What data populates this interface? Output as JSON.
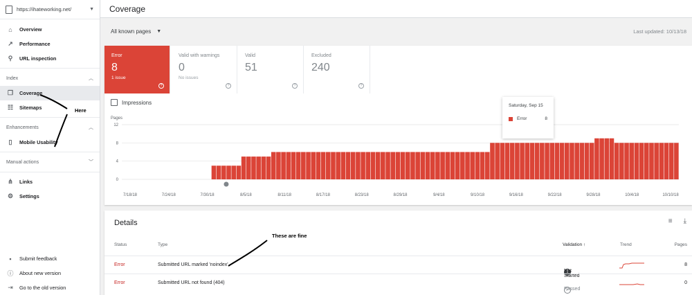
{
  "sidebar": {
    "property_url": "https://ihateworking.net/",
    "top_items": [
      {
        "label": "Overview",
        "icon": "home-icon"
      },
      {
        "label": "Performance",
        "icon": "trending-up-icon"
      },
      {
        "label": "URL inspection",
        "icon": "search-icon"
      }
    ],
    "index_section": "Index",
    "index_items": [
      {
        "label": "Coverage",
        "icon": "copy-icon"
      },
      {
        "label": "Sitemaps",
        "icon": "sitemap-icon"
      }
    ],
    "enhancements_section": "Enhancements",
    "enhancement_items": [
      {
        "label": "Mobile Usability",
        "icon": "phone-icon"
      }
    ],
    "manual_section": "Manual actions",
    "bottom_items": [
      {
        "label": "Links",
        "icon": "links-icon"
      },
      {
        "label": "Settings",
        "icon": "gear-icon"
      }
    ],
    "footer_items": [
      {
        "label": "Submit feedback",
        "icon": "feedback-icon"
      },
      {
        "label": "About new version",
        "icon": "info-icon"
      },
      {
        "label": "Go to the old version",
        "icon": "exit-icon"
      }
    ]
  },
  "header": {
    "title": "Coverage"
  },
  "filter": {
    "selected": "All known pages",
    "last_updated": "Last updated: 10/13/18"
  },
  "tiles": [
    {
      "label": "Error",
      "value": "8",
      "sub": "1 issue"
    },
    {
      "label": "Valid with warnings",
      "value": "0",
      "sub": "No issues"
    },
    {
      "label": "Valid",
      "value": "51",
      "sub": ""
    },
    {
      "label": "Excluded",
      "value": "240",
      "sub": ""
    }
  ],
  "impressions_label": "Impressions",
  "tooltip": {
    "date": "Saturday, Sep 15",
    "series": "Error",
    "value": "8"
  },
  "colors": {
    "error": "#db4437",
    "accent": "#c5221f"
  },
  "chart_data": {
    "type": "bar",
    "ylabel": "Pages",
    "yticks": [
      0,
      4,
      8,
      12
    ],
    "ylim": [
      0,
      12
    ],
    "xtick_labels": [
      "7/18/18",
      "7/24/18",
      "7/30/18",
      "8/5/18",
      "8/11/18",
      "8/17/18",
      "8/23/18",
      "8/29/18",
      "9/4/18",
      "9/10/18",
      "9/16/18",
      "9/22/18",
      "9/28/18",
      "10/4/18",
      "10/10/18"
    ],
    "series": [
      {
        "name": "Error",
        "values": [
          0,
          0,
          0,
          0,
          0,
          0,
          0,
          0,
          0,
          0,
          0,
          0,
          0,
          0,
          0,
          0,
          0,
          0,
          3,
          3,
          3,
          3,
          3,
          3,
          5,
          5,
          5,
          5,
          5,
          5,
          6,
          6,
          6,
          6,
          6,
          6,
          6,
          6,
          6,
          6,
          6,
          6,
          6,
          6,
          6,
          6,
          6,
          6,
          6,
          6,
          6,
          6,
          6,
          6,
          6,
          6,
          6,
          6,
          6,
          6,
          6,
          6,
          6,
          6,
          6,
          6,
          6,
          6,
          6,
          6,
          6,
          6,
          6,
          6,
          8,
          8,
          8,
          8,
          8,
          8,
          8,
          8,
          8,
          8,
          8,
          8,
          8,
          8,
          8,
          8,
          8,
          8,
          8,
          8,
          8,
          9,
          9,
          9,
          9,
          8,
          8,
          8,
          8,
          8,
          8,
          8,
          8,
          8,
          8,
          8,
          8,
          8
        ]
      }
    ]
  },
  "details": {
    "title": "Details",
    "headers": {
      "status": "Status",
      "type": "Type",
      "validation": "Validation",
      "trend": "Trend",
      "pages": "Pages"
    },
    "rows": [
      {
        "status": "Error",
        "type": "Submitted URL marked 'noindex'",
        "validation": "Not Started",
        "pages": "8"
      },
      {
        "status": "Error",
        "type": "Submitted URL not found (404)",
        "validation": "Passed",
        "pages": "0"
      }
    ]
  },
  "annotations": {
    "here": "Here",
    "fine": "These are fine"
  }
}
